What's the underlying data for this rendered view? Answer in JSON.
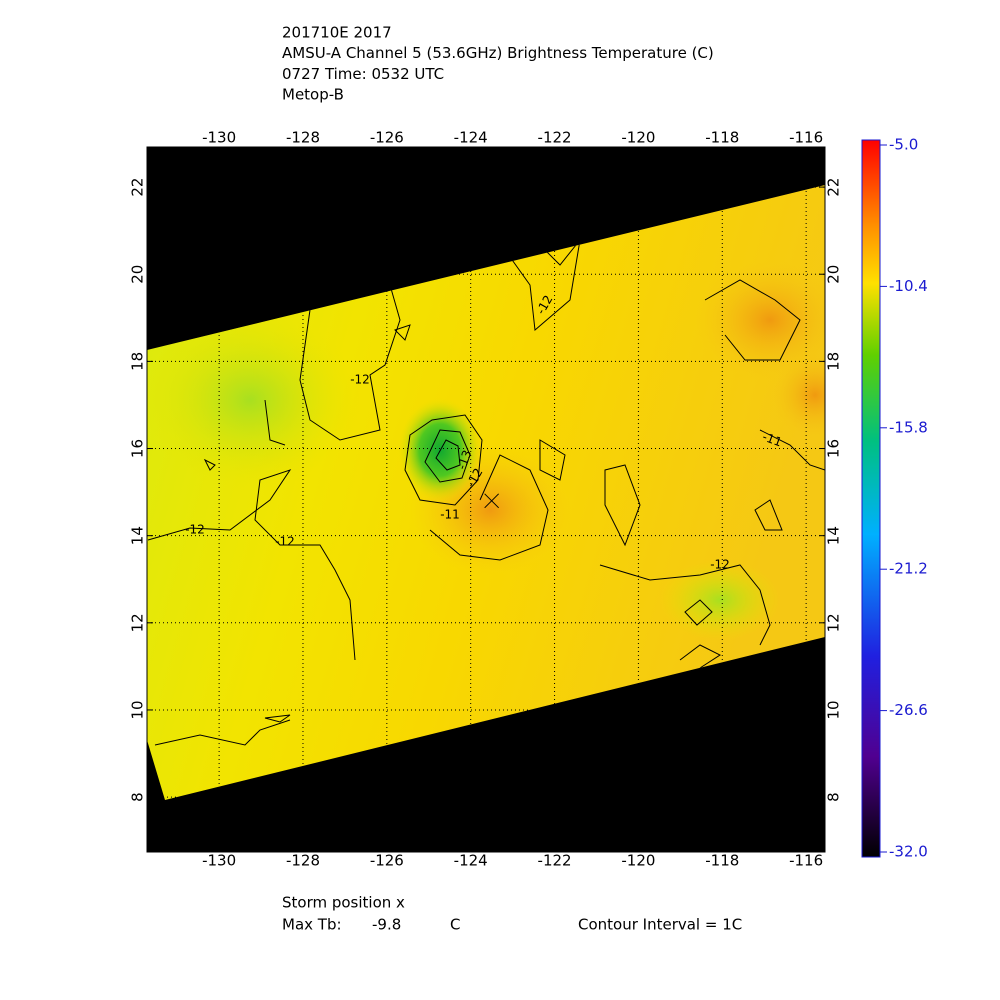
{
  "chart_data": {
    "type": "map",
    "title_lines": [
      "201710E 2017",
      "AMSU-A Channel 5 (53.6GHz) Brightness Temperature (C)",
      "0727 Time: 0532 UTC",
      "Metop-B"
    ],
    "xlim": [
      -131.72,
      -115.55
    ],
    "ylim": [
      6.74,
      22.92
    ],
    "xticks": [
      -130,
      -128,
      -126,
      -124,
      -122,
      -120,
      -118,
      -116
    ],
    "yticks": [
      8,
      10,
      12,
      14,
      16,
      18,
      20,
      22
    ],
    "grid": true,
    "colorbar": {
      "lim": [
        -32,
        -5
      ],
      "ticks": [
        {
          "value": -5,
          "label": "-5.0"
        },
        -10.4,
        -15.8,
        -21.2,
        -26.6,
        {
          "value": -32,
          "label": "-32.0"
        }
      ]
    },
    "contour_labels": [
      -12,
      -12,
      -12,
      -12,
      -11,
      -12,
      -13,
      -12,
      -11
    ],
    "storm_position": {
      "lon": -123.5,
      "lat": 14.8
    },
    "storm_position_label": "Storm position x",
    "max_tb_label": "Max Tb:",
    "max_tb": -9.8,
    "max_tb_unit": "C",
    "contour_interval_label": "Contour Interval = 1C"
  }
}
